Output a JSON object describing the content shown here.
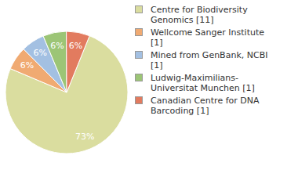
{
  "chart_data": {
    "type": "pie",
    "categories": [
      "Centre for Biodiversity Genomics [11]",
      "Wellcome Sanger Institute [1]",
      "Mined from GenBank, NCBI [1]",
      "Ludwig-Maximilians-Universitat Munchen [1]",
      "Canadian Centre for DNA Barcoding [1]"
    ],
    "values": [
      73,
      6,
      6,
      6,
      6
    ],
    "value_labels": [
      "73%",
      "6%",
      "6%",
      "6%",
      "6%"
    ],
    "colors": [
      "#dadd9f",
      "#f0aa72",
      "#a3c0e2",
      "#9cc576",
      "#e27b5f"
    ],
    "data_labels": true,
    "legend": "right"
  }
}
